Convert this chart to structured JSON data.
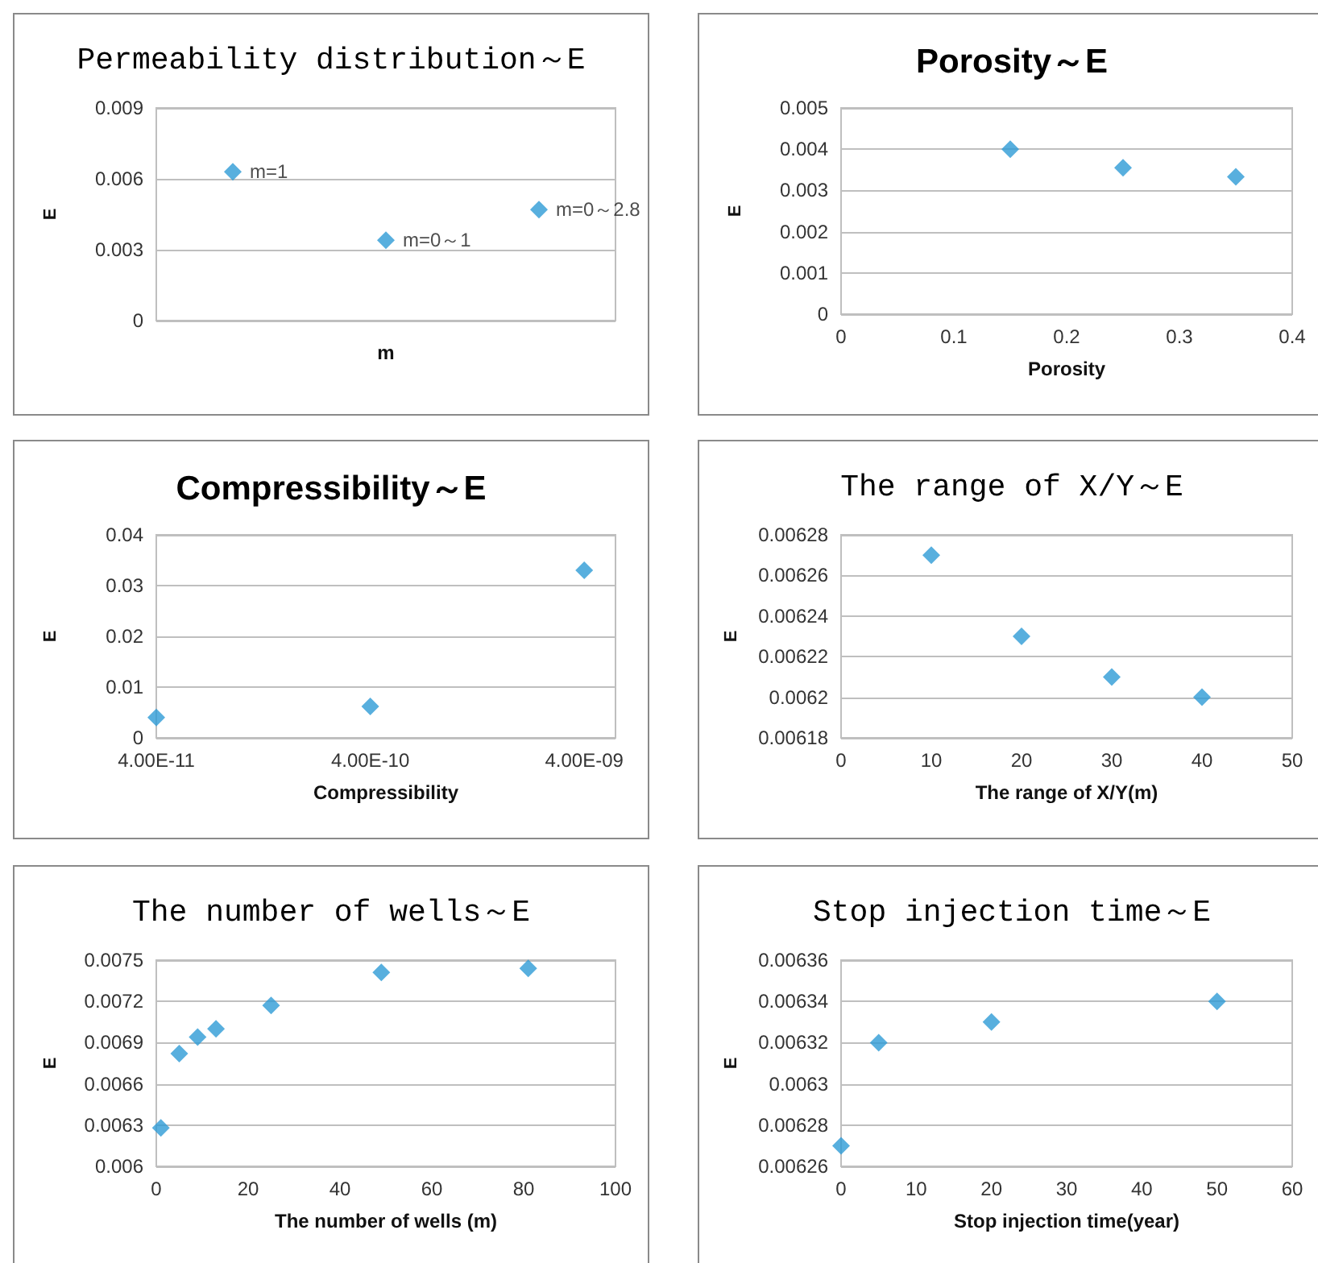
{
  "chart_data": [
    {
      "type": "scatter",
      "title": "Permeability distribution～E",
      "xlabel": "m",
      "ylabel": "E",
      "categories": [
        null,
        null,
        null
      ],
      "series": [
        {
          "name": "m=1",
          "color": "#2e9bd6",
          "values": [
            0.0063,
            null,
            null
          ]
        },
        {
          "name": "m=0～1",
          "color": "#2e9bd6",
          "values": [
            null,
            0.0034,
            null
          ]
        },
        {
          "name": "m=0～2.8",
          "color": "#2e9bd6",
          "values": [
            null,
            null,
            0.0047
          ]
        }
      ],
      "marker": "diamond",
      "ylim": [
        0,
        0.009
      ],
      "yticks": [
        0,
        0.003,
        0.006,
        0.009
      ],
      "grid": "y"
    },
    {
      "type": "scatter",
      "title": "Porosity～E",
      "xlabel": "Porosity",
      "ylabel": "E",
      "x": [
        0.15,
        0.25,
        0.35
      ],
      "values": [
        0.004,
        0.00355,
        0.00333
      ],
      "color": "#2e9bd6",
      "marker": "diamond",
      "xlim": [
        0,
        0.4
      ],
      "xticks": [
        0,
        0.1,
        0.2,
        0.3,
        0.4
      ],
      "ylim": [
        0,
        0.005
      ],
      "yticks": [
        0,
        0.001,
        0.002,
        0.003,
        0.004,
        0.005
      ],
      "grid": "y"
    },
    {
      "type": "scatter",
      "title": "Compressibility～E",
      "xlabel": "Compressibility",
      "ylabel": "E",
      "x": [
        4e-11,
        4e-10,
        4e-09
      ],
      "values": [
        0.004,
        0.0062,
        0.033
      ],
      "color": "#2e9bd6",
      "marker": "diamond",
      "log": "x",
      "xlim": [
        4e-11,
        5.6e-09
      ],
      "xticks": [
        {
          "value": 4e-11,
          "label": "4.00E-11"
        },
        {
          "value": 4e-10,
          "label": "4.00E-10"
        },
        {
          "value": 4e-09,
          "label": "4.00E-09"
        }
      ],
      "ylim": [
        0,
        0.04
      ],
      "yticks": [
        0,
        0.01,
        0.02,
        0.03,
        0.04
      ],
      "grid": "y"
    },
    {
      "type": "scatter",
      "title": "The range of X/Y～E",
      "xlabel": "The range of X/Y(m)",
      "ylabel": "E",
      "x": [
        10,
        20,
        30,
        40
      ],
      "values": [
        0.00627,
        0.00623,
        0.00621,
        0.0062
      ],
      "color": "#2e9bd6",
      "marker": "diamond",
      "xlim": [
        0,
        50
      ],
      "xticks": [
        0,
        10,
        20,
        30,
        40,
        50
      ],
      "ylim": [
        0.00618,
        0.00628
      ],
      "yticks": [
        0.00618,
        0.0062,
        0.00622,
        0.00624,
        0.00626,
        0.00628
      ],
      "grid": "y"
    },
    {
      "type": "scatter",
      "title": "The number of wells～E",
      "xlabel": "The number of wells (m)",
      "ylabel": "E",
      "x": [
        1,
        5,
        9,
        13,
        25,
        49,
        81
      ],
      "values": [
        0.00628,
        0.00682,
        0.00694,
        0.007,
        0.00717,
        0.00741,
        0.00744
      ],
      "color": "#2e9bd6",
      "marker": "diamond",
      "xlim": [
        0,
        100
      ],
      "xticks": [
        0,
        20,
        40,
        60,
        80,
        100
      ],
      "ylim": [
        0.006,
        0.0075
      ],
      "yticks": [
        0.006,
        0.0063,
        0.0066,
        0.0069,
        0.0072,
        0.0075
      ],
      "grid": "y"
    },
    {
      "type": "scatter",
      "title": "Stop injection time～E",
      "xlabel": "Stop injection time(year)",
      "ylabel": "E",
      "x": [
        0,
        5,
        20,
        50
      ],
      "values": [
        0.00627,
        0.00632,
        0.00633,
        0.00634
      ],
      "color": "#2e9bd6",
      "marker": "diamond",
      "xlim": [
        0,
        60
      ],
      "xticks": [
        0,
        10,
        20,
        30,
        40,
        50,
        60
      ],
      "ylim": [
        0.00626,
        0.00636
      ],
      "yticks": [
        0.00626,
        0.00628,
        0.0063,
        0.00632,
        0.00634,
        0.00636
      ],
      "grid": "y"
    }
  ]
}
